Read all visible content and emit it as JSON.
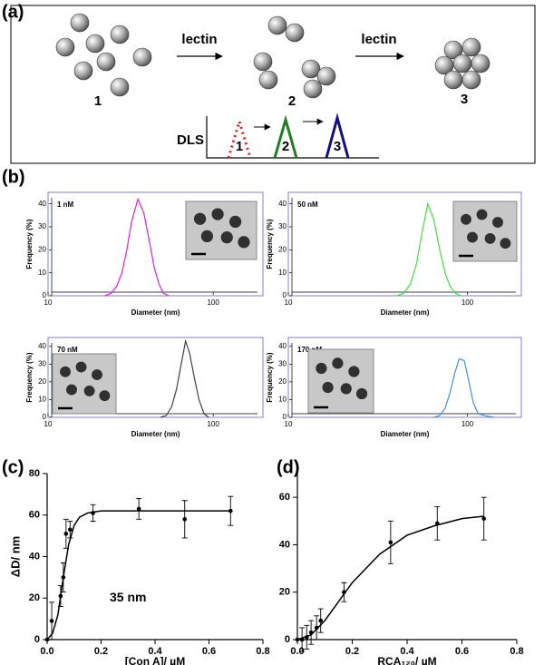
{
  "diagram": {
    "label": "(a)",
    "arrows": [
      "lectin",
      "lectin"
    ],
    "states": [
      "1",
      "2",
      "3"
    ],
    "dls": {
      "title": "DLS",
      "peaks": [
        "1",
        "2",
        "3"
      ]
    }
  },
  "panel_labels": {
    "b": "(b)",
    "c": "(c)",
    "d": "(d)"
  },
  "chart_data": [
    {
      "type": "line",
      "label": "1 nM",
      "xscale": "log",
      "xlim": [
        10,
        200
      ],
      "xticks": [
        10,
        100
      ],
      "ylim": [
        0,
        45
      ],
      "yticks": [
        0,
        10,
        20,
        30,
        40
      ],
      "x_label": "Diameter (nm)",
      "y_label": "Frequency (%)",
      "series": [
        {
          "color": "#e020e0",
          "x": [
            22,
            24,
            26,
            28,
            30,
            32,
            35,
            38,
            41,
            44,
            47,
            50,
            54
          ],
          "values": [
            0,
            1,
            4,
            10,
            20,
            32,
            42,
            36,
            24,
            12,
            5,
            1,
            0
          ]
        }
      ]
    },
    {
      "type": "line",
      "label": "50 nM",
      "xscale": "log",
      "xlim": [
        10,
        200
      ],
      "xticks": [
        10,
        100
      ],
      "ylim": [
        0,
        45
      ],
      "yticks": [
        0,
        10,
        20,
        30,
        40
      ],
      "x_label": "Diameter (nm)",
      "y_label": "Frequency (%)",
      "series": [
        {
          "color": "#40e040",
          "x": [
            40,
            44,
            48,
            52,
            56,
            60,
            65,
            70,
            75,
            80,
            86,
            92
          ],
          "values": [
            0,
            1,
            5,
            14,
            28,
            40,
            33,
            20,
            10,
            4,
            1,
            0
          ]
        }
      ]
    },
    {
      "type": "line",
      "label": "70 nM",
      "xscale": "log",
      "xlim": [
        10,
        200
      ],
      "xticks": [
        10,
        100
      ],
      "ylim": [
        0,
        45
      ],
      "yticks": [
        0,
        10,
        20,
        30,
        40
      ],
      "x_label": "Diameter (nm)",
      "y_label": "Frequency (%)",
      "series": [
        {
          "color": "#404040",
          "x": [
            48,
            52,
            56,
            60,
            64,
            68,
            72,
            77,
            82,
            88,
            94
          ],
          "values": [
            0,
            1,
            6,
            16,
            30,
            43,
            36,
            22,
            10,
            2,
            0
          ]
        }
      ]
    },
    {
      "type": "line",
      "label": "170 nM",
      "xscale": "log",
      "xlim": [
        10,
        200
      ],
      "xticks": [
        10,
        100
      ],
      "ylim": [
        0,
        45
      ],
      "yticks": [
        0,
        10,
        20,
        30,
        40
      ],
      "x_label": "Diameter (nm)",
      "y_label": "Frequency (%)",
      "series": [
        {
          "color": "#4090e0",
          "x": [
            65,
            70,
            75,
            80,
            85,
            90,
            96,
            102,
            108,
            115,
            125,
            140
          ],
          "values": [
            0,
            1,
            5,
            14,
            25,
            33,
            32,
            20,
            8,
            2,
            1,
            0
          ]
        }
      ]
    },
    {
      "type": "scatter",
      "xlim": [
        0,
        0.8
      ],
      "xticks": [
        {
          "value": 0,
          "label": "0.0"
        },
        0.2,
        0.4,
        0.6,
        0.8
      ],
      "ylim": [
        0,
        80
      ],
      "yticks": [
        0,
        20,
        40,
        60,
        80
      ],
      "x_label": "[Con A]/ µM",
      "y_label": "ΔD/ nm",
      "annotation": "35 nm",
      "x": [
        0,
        0.017,
        0.05,
        0.06,
        0.07,
        0.085,
        0.17,
        0.34,
        0.51,
        0.68
      ],
      "values": [
        0,
        9,
        21,
        30,
        51,
        53,
        61,
        63,
        58,
        62
      ],
      "errors": [
        0,
        9,
        5,
        7,
        7,
        4,
        4,
        5,
        9,
        7
      ],
      "fit": {
        "x": [
          0,
          0.02,
          0.04,
          0.06,
          0.08,
          0.1,
          0.12,
          0.15,
          0.2,
          0.3,
          0.5,
          0.68
        ],
        "values": [
          0,
          3,
          12,
          30,
          46,
          55,
          59,
          61,
          62,
          62,
          62,
          62
        ]
      }
    },
    {
      "type": "scatter",
      "xlim": [
        0,
        0.8
      ],
      "xticks": [
        {
          "value": 0,
          "label": "0.0"
        },
        0.2,
        0.4,
        0.6,
        0.8
      ],
      "ylim": [
        0,
        70
      ],
      "yticks": [
        0,
        20,
        40,
        60
      ],
      "x_label": "RCA₁₂₀/ µM",
      "x": [
        0,
        0.017,
        0.034,
        0.05,
        0.07,
        0.085,
        0.17,
        0.34,
        0.51,
        0.68
      ],
      "values": [
        0,
        0,
        1,
        3,
        5,
        8,
        20,
        41,
        49,
        51
      ],
      "errors": [
        0,
        5,
        5,
        5,
        5,
        5,
        4,
        9,
        7,
        9
      ],
      "fit": {
        "x": [
          0,
          0.05,
          0.1,
          0.15,
          0.2,
          0.3,
          0.4,
          0.5,
          0.6,
          0.68
        ],
        "values": [
          0,
          2,
          8,
          16,
          24,
          36,
          44,
          48,
          51,
          52
        ]
      }
    }
  ]
}
